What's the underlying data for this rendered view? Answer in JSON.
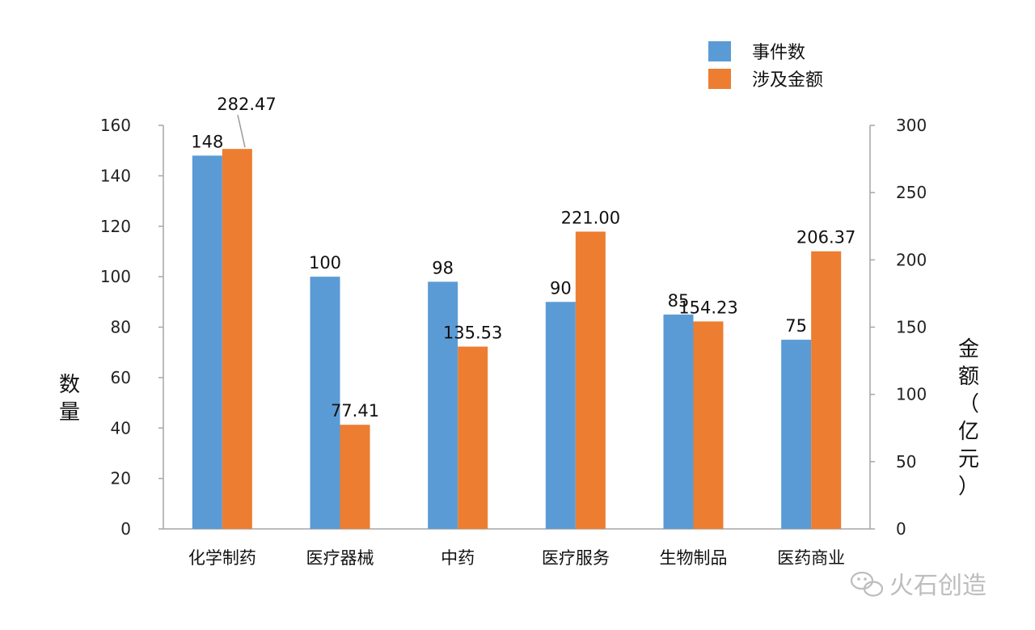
{
  "chart_data": {
    "type": "bar",
    "categories": [
      "化学制药",
      "医疗器械",
      "中药",
      "医疗服务",
      "生物制品",
      "医药商业"
    ],
    "series": [
      {
        "name": "事件数",
        "axis": "left",
        "color": "#5b9bd5",
        "values": [
          148,
          100,
          98,
          90,
          85,
          75
        ],
        "labels": [
          "148",
          "100",
          "98",
          "90",
          "85",
          "75"
        ]
      },
      {
        "name": "涉及金额",
        "axis": "right",
        "color": "#ed7d31",
        "values": [
          282.47,
          77.41,
          135.53,
          221.0,
          154.23,
          206.37
        ],
        "labels": [
          "282.47",
          "77.41",
          "135.53",
          "221.00",
          "154.23",
          "206.37"
        ]
      }
    ],
    "ylabel": "数量",
    "y2label": "金额（亿元）",
    "ylim": [
      0,
      160
    ],
    "y2lim": [
      0,
      300
    ],
    "yticks": [
      "0",
      "20",
      "40",
      "60",
      "80",
      "100",
      "120",
      "140",
      "160"
    ],
    "y2ticks": [
      "0",
      "50",
      "100",
      "150",
      "200",
      "250",
      "300"
    ],
    "legend_position": "top-right",
    "grid": false
  },
  "watermark": {
    "text": "火石创造",
    "icon": "wechat-icon"
  }
}
